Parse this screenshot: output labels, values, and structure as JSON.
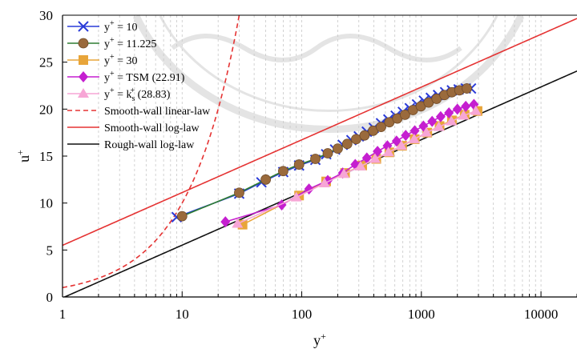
{
  "chart_data": {
    "type": "line",
    "title": "",
    "xlabel": "y+",
    "ylabel": "u+",
    "xscale": "log",
    "xlim": [
      1,
      20000
    ],
    "ylim": [
      0,
      30
    ],
    "xticks": [
      1,
      10,
      100,
      1000,
      10000
    ],
    "xtick_labels": [
      "1",
      "10",
      "100",
      "1000",
      "10000"
    ],
    "yticks": [
      0,
      5,
      10,
      15,
      20,
      25,
      30
    ],
    "ytick_labels": [
      "0",
      "5",
      "10",
      "15",
      "20",
      "25",
      "30"
    ],
    "grid": "vertical dashed (major and minor)",
    "legend_position": "top-left",
    "series": [
      {
        "name": "y+ = 10",
        "legend_label": [
          "y",
          "+",
          " = 10"
        ],
        "color": "#2a3bd8",
        "marker": "x",
        "x": [
          9,
          30,
          46,
          70,
          95,
          130,
          160,
          190,
          220,
          260,
          300,
          350,
          400,
          460,
          530,
          610,
          700,
          800,
          920,
          1050,
          1200,
          1380,
          1580,
          1800,
          2050,
          2350,
          2600
        ],
        "y": [
          8.5,
          11.0,
          12.2,
          13.3,
          14.0,
          14.6,
          15.2,
          15.7,
          16.2,
          16.7,
          17.1,
          17.6,
          18.0,
          18.5,
          18.9,
          19.3,
          19.7,
          20.1,
          20.5,
          20.9,
          21.2,
          21.5,
          21.8,
          22.0,
          22.1,
          22.2,
          22.2
        ]
      },
      {
        "name": "y+ = 11.225",
        "legend_label": [
          "y",
          "+",
          " = 11.225"
        ],
        "color": "#2e7d32",
        "marker": "circle",
        "x": [
          10,
          30,
          50,
          70,
          95,
          130,
          165,
          200,
          240,
          285,
          335,
          395,
          460,
          540,
          630,
          730,
          850,
          990,
          1150,
          1340,
          1560,
          1800,
          2080,
          2400
        ],
        "y": [
          8.6,
          11.1,
          12.5,
          13.4,
          14.1,
          14.7,
          15.3,
          15.8,
          16.3,
          16.8,
          17.2,
          17.7,
          18.1,
          18.6,
          19.0,
          19.4,
          19.9,
          20.3,
          20.7,
          21.1,
          21.5,
          21.8,
          22.0,
          22.2
        ]
      },
      {
        "name": "y+ = 30",
        "legend_label": [
          "y",
          "+",
          " = 30"
        ],
        "color": "#e8a53a",
        "marker": "square",
        "x": [
          32,
          95,
          160,
          230,
          320,
          420,
          540,
          690,
          880,
          1120,
          1420,
          1800,
          2300,
          2950
        ],
        "y": [
          7.7,
          10.8,
          12.3,
          13.2,
          14.0,
          14.7,
          15.4,
          16.1,
          16.8,
          17.5,
          18.2,
          18.8,
          19.4,
          19.8
        ]
      },
      {
        "name": "y+ = TSM (22.91)",
        "legend_label": [
          "y",
          "+",
          " = TSM (22.91)"
        ],
        "color": "#c51fd0",
        "marker": "diamond",
        "x": [
          23,
          68,
          115,
          165,
          220,
          280,
          350,
          430,
          520,
          620,
          740,
          880,
          1040,
          1230,
          1450,
          1700,
          2000,
          2350,
          2750
        ],
        "y": [
          8.0,
          9.8,
          11.5,
          12.4,
          13.2,
          14.1,
          14.8,
          15.5,
          16.1,
          16.6,
          17.2,
          17.7,
          18.2,
          18.7,
          19.2,
          19.6,
          20.0,
          20.3,
          20.5
        ]
      },
      {
        "name": "y+ = ks+ (28.83)",
        "legend_label": [
          "y",
          "+",
          " = k",
          "s",
          "+",
          " (28.83)"
        ],
        "color": "#f7a6d6",
        "marker": "triangle",
        "x": [
          29,
          90,
          155,
          225,
          310,
          410,
          530,
          680,
          870,
          1100,
          1400,
          1780,
          2250,
          2850
        ],
        "y": [
          7.8,
          10.6,
          12.1,
          13.1,
          13.9,
          14.7,
          15.4,
          16.1,
          16.8,
          17.5,
          18.1,
          18.7,
          19.3,
          19.8
        ]
      }
    ],
    "reference_lines": [
      {
        "name": "Smooth-wall linear-law",
        "color": "#e53333",
        "style": "dashed",
        "law": "u+ = y+"
      },
      {
        "name": "Smooth-wall log-law",
        "color": "#e53333",
        "style": "solid",
        "law": "u+ = (1/0.41) ln(y+) + 5.5"
      },
      {
        "name": "Rough-wall log-law",
        "color": "#111111",
        "style": "solid",
        "law": "u+ = (1/0.41) ln(y+) - 0.1"
      }
    ]
  }
}
